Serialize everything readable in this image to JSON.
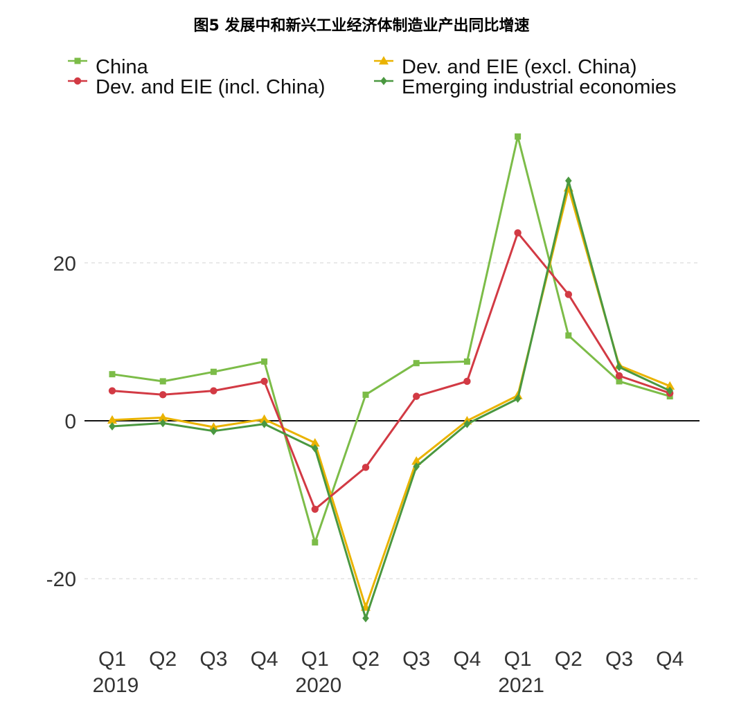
{
  "title": "图5 发展中和新兴工业经济体制造业产出同比增速",
  "chart_data": {
    "type": "line",
    "title": "图5 发展中和新兴工业经济体制造业产出同比增速",
    "xlabel": "",
    "ylabel": "",
    "ylim": [
      -27,
      38
    ],
    "yticks": [
      -20,
      0,
      20
    ],
    "ytick_labels": [
      "-20",
      "0",
      "20"
    ],
    "grid": true,
    "legend_position": "top",
    "categories": [
      "Q1 2019",
      "Q2 2019",
      "Q3 2019",
      "Q4 2019",
      "Q1 2020",
      "Q2 2020",
      "Q3 2020",
      "Q4 2020",
      "Q1 2021",
      "Q2 2021",
      "Q3 2021",
      "Q4 2021"
    ],
    "quarter_labels": [
      "Q1",
      "Q2",
      "Q3",
      "Q4",
      "Q1",
      "Q2",
      "Q3",
      "Q4",
      "Q1",
      "Q2",
      "Q3",
      "Q4"
    ],
    "year_labels": [
      {
        "label": "2019",
        "index": 0
      },
      {
        "label": "2020",
        "index": 4
      },
      {
        "label": "2021",
        "index": 8
      }
    ],
    "series": [
      {
        "name": "China",
        "color": "#7cbc48",
        "marker": "square",
        "values": [
          5.9,
          5.0,
          6.2,
          7.5,
          -15.4,
          3.3,
          7.3,
          7.5,
          36.0,
          10.8,
          5.0,
          3.1
        ]
      },
      {
        "name": "Dev. and EIE (excl. China)",
        "color": "#eab300",
        "marker": "triangle",
        "values": [
          0.1,
          0.4,
          -0.8,
          0.2,
          -2.8,
          -23.6,
          -5.1,
          0.0,
          3.2,
          29.5,
          7.0,
          4.4
        ]
      },
      {
        "name": "Dev. and EIE (incl. China)",
        "color": "#d23a44",
        "marker": "circle",
        "values": [
          3.8,
          3.3,
          3.8,
          5.0,
          -11.2,
          -5.9,
          3.1,
          5.0,
          23.8,
          16.0,
          5.7,
          3.5
        ]
      },
      {
        "name": "Emerging industrial economies",
        "color": "#4a9840",
        "marker": "diamond",
        "values": [
          -0.7,
          -0.3,
          -1.3,
          -0.4,
          -3.5,
          -25.0,
          -5.8,
          -0.4,
          2.8,
          30.4,
          6.8,
          3.8
        ]
      }
    ]
  }
}
